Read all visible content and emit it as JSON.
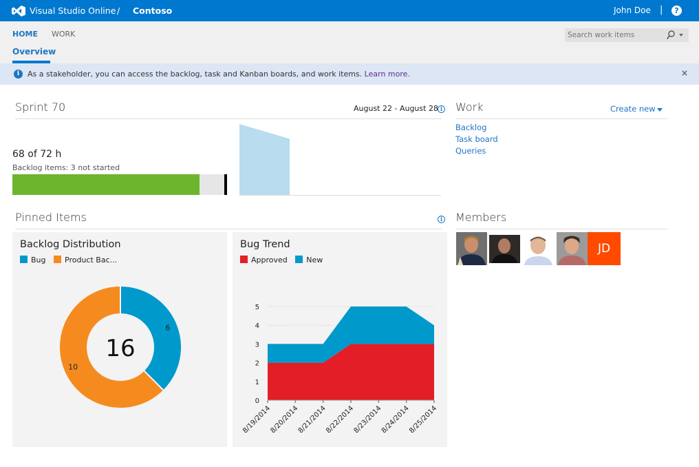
{
  "header": {
    "brand": "Visual Studio Online",
    "separator": "/",
    "project": "Contoso",
    "user": "John Doe",
    "divider": "|",
    "help_icon": "?"
  },
  "nav": {
    "tabs": [
      {
        "label": "HOME",
        "active": true
      },
      {
        "label": "WORK",
        "active": false
      }
    ],
    "subtab": "Overview",
    "search": {
      "placeholder": "Search work items",
      "value": ""
    }
  },
  "banner": {
    "message": "As a stakeholder, you can access the backlog, task and Kanban boards, and work items.",
    "link": "Learn more.",
    "close": "×"
  },
  "sprint": {
    "title": "Sprint 70",
    "dates": "August 22 - August 28",
    "hours": "68 of 72 h",
    "summary": "Backlog items: 3 not started",
    "progress_percent": 94.4,
    "burndown_remaining": [
      100,
      79
    ]
  },
  "work": {
    "title": "Work",
    "create_new": "Create new",
    "links": [
      "Backlog",
      "Task board",
      "Queries"
    ]
  },
  "pinned": {
    "title": "Pinned Items"
  },
  "members": {
    "title": "Members",
    "avatars": [
      "member-1",
      "member-2",
      "member-3",
      "member-4"
    ],
    "initials": "JD"
  },
  "colors": {
    "brand": "#0078cf",
    "bug": "#0099cc",
    "product_backlog": "#f58b1f",
    "approved": "#e31e26",
    "new": "#0099cc",
    "progress": "#6cb52d"
  },
  "chart_data": [
    {
      "type": "pie",
      "title": "Backlog Distribution",
      "legend": [
        "Bug",
        "Product Bac..."
      ],
      "categories": [
        "Bug",
        "Product Backlog Item"
      ],
      "values": [
        6,
        10
      ],
      "total": "16",
      "labels": [
        "6",
        "10"
      ]
    },
    {
      "type": "area",
      "title": "Bug Trend",
      "legend": [
        "Approved",
        "New"
      ],
      "categories": [
        "8/19/2014",
        "8/20/2014",
        "8/21/2014",
        "8/22/2014",
        "8/23/2014",
        "8/24/2014",
        "8/25/2014"
      ],
      "series": [
        {
          "name": "Approved",
          "values": [
            2,
            2,
            2,
            3,
            3,
            3,
            3
          ]
        },
        {
          "name": "New",
          "values": [
            1,
            1,
            1,
            2,
            2,
            2,
            1
          ]
        }
      ],
      "stacked": true,
      "ylim": [
        0,
        5
      ],
      "yticks": [
        "0",
        "1",
        "2",
        "3",
        "4",
        "5"
      ],
      "grid": true
    }
  ]
}
